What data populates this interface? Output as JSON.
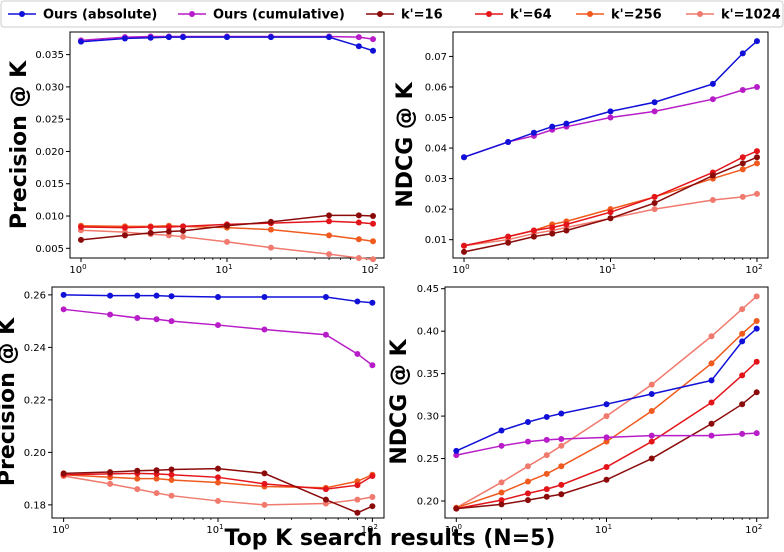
{
  "chart_data": [
    {
      "type": "line",
      "panel": "top-left",
      "ylabel": "Precision @ K",
      "xlabel": "",
      "xscale": "log",
      "xlim": [
        1,
        100
      ],
      "x_ticks": [
        {
          "v": 1,
          "label": "10",
          "exp": "0"
        },
        {
          "v": 10,
          "label": "10",
          "exp": "1"
        },
        {
          "v": 100,
          "label": "10",
          "exp": "2"
        }
      ],
      "ylim": [
        0.0035,
        0.0385
      ],
      "y_ticks": [
        "0.005",
        "0.010",
        "0.015",
        "0.020",
        "0.025",
        "0.030",
        "0.035"
      ],
      "x": [
        1,
        2,
        3,
        4,
        5,
        10,
        20,
        50,
        80,
        100
      ],
      "series": [
        {
          "name": "Ours (absolute)",
          "values": [
            0.037,
            0.0375,
            0.0376,
            0.0377,
            0.0377,
            0.0377,
            0.0377,
            0.0377,
            0.0363,
            0.0356
          ]
        },
        {
          "name": "Ours (cumulative)",
          "values": [
            0.0372,
            0.0377,
            0.0378,
            0.0378,
            0.0378,
            0.0378,
            0.0378,
            0.0378,
            0.0377,
            0.0374
          ]
        },
        {
          "name": "k'=16",
          "values": [
            0.0063,
            0.007,
            0.0074,
            0.0076,
            0.0077,
            0.0085,
            0.0091,
            0.0101,
            0.0101,
            0.01
          ]
        },
        {
          "name": "k'=64",
          "values": [
            0.0083,
            0.0082,
            0.0083,
            0.0083,
            0.0084,
            0.0087,
            0.0089,
            0.0092,
            0.009,
            0.0088
          ]
        },
        {
          "name": "k'=256",
          "values": [
            0.0085,
            0.0084,
            0.0084,
            0.0085,
            0.0084,
            0.0082,
            0.0079,
            0.007,
            0.0064,
            0.0061
          ]
        },
        {
          "name": "k'=1024",
          "values": [
            0.0078,
            0.0075,
            0.0072,
            0.007,
            0.0068,
            0.006,
            0.0051,
            0.0041,
            0.0035,
            0.0033
          ]
        }
      ]
    },
    {
      "type": "line",
      "panel": "top-right",
      "ylabel": "NDCG @ K",
      "xlabel": "",
      "xscale": "log",
      "xlim": [
        1,
        100
      ],
      "x_ticks": [
        {
          "v": 1,
          "label": "10",
          "exp": "0"
        },
        {
          "v": 10,
          "label": "10",
          "exp": "1"
        },
        {
          "v": 100,
          "label": "10",
          "exp": "2"
        }
      ],
      "ylim": [
        0.004,
        0.078
      ],
      "y_ticks": [
        "0.01",
        "0.02",
        "0.03",
        "0.04",
        "0.05",
        "0.06",
        "0.07"
      ],
      "x": [
        1,
        2,
        3,
        4,
        5,
        10,
        20,
        50,
        80,
        100
      ],
      "series": [
        {
          "name": "Ours (absolute)",
          "values": [
            0.037,
            0.042,
            0.045,
            0.047,
            0.048,
            0.052,
            0.055,
            0.061,
            0.071,
            0.075
          ]
        },
        {
          "name": "Ours (cumulative)",
          "values": [
            0.037,
            0.042,
            0.044,
            0.046,
            0.047,
            0.05,
            0.052,
            0.056,
            0.059,
            0.06
          ]
        },
        {
          "name": "k'=16",
          "values": [
            0.006,
            0.009,
            0.011,
            0.012,
            0.013,
            0.017,
            0.022,
            0.031,
            0.035,
            0.037
          ]
        },
        {
          "name": "k'=64",
          "values": [
            0.008,
            0.011,
            0.013,
            0.014,
            0.015,
            0.019,
            0.024,
            0.032,
            0.037,
            0.039
          ]
        },
        {
          "name": "k'=256",
          "values": [
            0.008,
            0.011,
            0.013,
            0.015,
            0.016,
            0.02,
            0.024,
            0.03,
            0.033,
            0.035
          ]
        },
        {
          "name": "k'=1024",
          "values": [
            0.008,
            0.01,
            0.012,
            0.013,
            0.014,
            0.017,
            0.02,
            0.023,
            0.024,
            0.025
          ]
        }
      ]
    },
    {
      "type": "line",
      "panel": "bottom-left",
      "ylabel": "Precision @ K",
      "xlabel": "",
      "xscale": "log",
      "xlim": [
        1,
        100
      ],
      "x_ticks": [
        {
          "v": 1,
          "label": "10",
          "exp": "0"
        },
        {
          "v": 10,
          "label": "10",
          "exp": "1"
        },
        {
          "v": 100,
          "label": "10",
          "exp": "2"
        }
      ],
      "ylim": [
        0.175,
        0.263
      ],
      "y_ticks": [
        "0.18",
        "0.20",
        "0.22",
        "0.24",
        "0.26"
      ],
      "x": [
        1,
        2,
        3,
        4,
        5,
        10,
        20,
        50,
        80,
        100
      ],
      "series": [
        {
          "name": "Ours (absolute)",
          "values": [
            0.26,
            0.2597,
            0.2597,
            0.2597,
            0.2595,
            0.2592,
            0.2592,
            0.2592,
            0.2575,
            0.257
          ]
        },
        {
          "name": "Ours (cumulative)",
          "values": [
            0.2545,
            0.2525,
            0.2512,
            0.2507,
            0.25,
            0.2485,
            0.2468,
            0.2448,
            0.2375,
            0.2332
          ]
        },
        {
          "name": "k'=16",
          "values": [
            0.192,
            0.1925,
            0.193,
            0.1932,
            0.1935,
            0.1938,
            0.192,
            0.182,
            0.177,
            0.1795
          ]
        },
        {
          "name": "k'=64",
          "values": [
            0.1915,
            0.1918,
            0.192,
            0.1918,
            0.1915,
            0.1905,
            0.188,
            0.186,
            0.1875,
            0.191
          ]
        },
        {
          "name": "k'=256",
          "values": [
            0.1915,
            0.1905,
            0.19,
            0.19,
            0.1895,
            0.1885,
            0.187,
            0.1865,
            0.189,
            0.1915
          ]
        },
        {
          "name": "k'=1024",
          "values": [
            0.191,
            0.188,
            0.186,
            0.1845,
            0.1835,
            0.1815,
            0.18,
            0.1805,
            0.182,
            0.183
          ]
        }
      ]
    },
    {
      "type": "line",
      "panel": "bottom-right",
      "ylabel": "NDCG @ K",
      "xlabel": "",
      "xscale": "log",
      "xlim": [
        1,
        100
      ],
      "x_ticks": [
        {
          "v": 1,
          "label": "10",
          "exp": "0"
        },
        {
          "v": 10,
          "label": "10",
          "exp": "1"
        },
        {
          "v": 100,
          "label": "10",
          "exp": "2"
        }
      ],
      "ylim": [
        0.18,
        0.452
      ],
      "y_ticks": [
        "0.20",
        "0.25",
        "0.30",
        "0.35",
        "0.40",
        "0.45"
      ],
      "x": [
        1,
        2,
        3,
        4,
        5,
        10,
        20,
        50,
        80,
        100
      ],
      "series": [
        {
          "name": "Ours (absolute)",
          "values": [
            0.259,
            0.283,
            0.293,
            0.299,
            0.303,
            0.314,
            0.326,
            0.342,
            0.388,
            0.403
          ]
        },
        {
          "name": "Ours (cumulative)",
          "values": [
            0.254,
            0.265,
            0.27,
            0.272,
            0.273,
            0.275,
            0.277,
            0.277,
            0.279,
            0.28
          ]
        },
        {
          "name": "k'=16",
          "values": [
            0.191,
            0.196,
            0.201,
            0.205,
            0.208,
            0.225,
            0.25,
            0.291,
            0.314,
            0.328
          ]
        },
        {
          "name": "k'=64",
          "values": [
            0.191,
            0.201,
            0.209,
            0.214,
            0.219,
            0.24,
            0.27,
            0.316,
            0.348,
            0.364
          ]
        },
        {
          "name": "k'=256",
          "values": [
            0.192,
            0.21,
            0.223,
            0.232,
            0.241,
            0.27,
            0.306,
            0.362,
            0.397,
            0.412
          ]
        },
        {
          "name": "k'=1024",
          "values": [
            0.192,
            0.222,
            0.241,
            0.254,
            0.265,
            0.3,
            0.337,
            0.394,
            0.426,
            0.441
          ]
        }
      ]
    }
  ],
  "legend": {
    "placement": "top",
    "entries": [
      {
        "label": "Ours (absolute)",
        "color": "#1010d8"
      },
      {
        "label": "Ours (cumulative)",
        "color": "#b81cc8"
      },
      {
        "label": "k'=16",
        "color": "#8b0a0a"
      },
      {
        "label": "k'=64",
        "color": "#e3151b"
      },
      {
        "label": "k'=256",
        "color": "#f05a1e"
      },
      {
        "label": "k'=1024",
        "color": "#f07a6e"
      }
    ]
  },
  "shared_xlabel": "Top K search results (N=5)",
  "series_colors": {
    "Ours (absolute)": "#1010d8",
    "Ours (cumulative)": "#b81cc8",
    "k'=16": "#8b0a0a",
    "k'=64": "#e3151b",
    "k'=256": "#f05a1e",
    "k'=1024": "#f07a6e"
  }
}
